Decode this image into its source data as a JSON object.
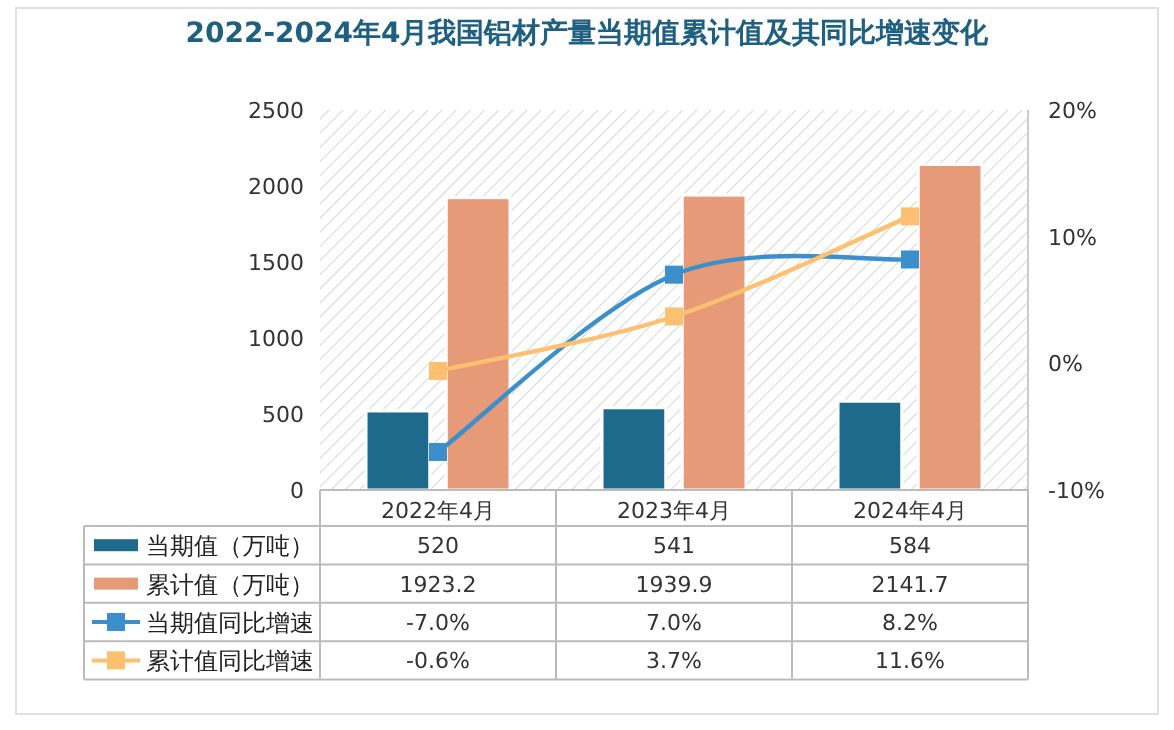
{
  "chart_data": {
    "type": "bar",
    "title": "2022-2024年4月我国铝材产量当期值累计值及其同比增速变化",
    "categories": [
      "2022年4月",
      "2023年4月",
      "2024年4月"
    ],
    "series": [
      {
        "name": "当期值（万吨）",
        "color": "#1e6a8d",
        "values": [
          520,
          541,
          584
        ]
      },
      {
        "name": "累计值（万吨）",
        "color": "#e69a78",
        "values": [
          1923.2,
          1939.9,
          2141.7
        ]
      },
      {
        "name": "当期值同比增速",
        "type": "line",
        "axis": "y2",
        "color": "#3d8fcc",
        "values": [
          -7.0,
          7.0,
          8.2
        ],
        "value_labels": [
          "-7.0%",
          "7.0%",
          "8.2%"
        ]
      },
      {
        "name": "累计值同比增速",
        "type": "line",
        "axis": "y2",
        "color": "#fcc070",
        "values": [
          -0.6,
          3.7,
          11.6
        ],
        "value_labels": [
          "-0.6%",
          "3.7%",
          "11.6%"
        ]
      }
    ],
    "ylim": [
      0,
      2500
    ],
    "yticks": [
      0,
      500,
      1000,
      1500,
      2000,
      2500
    ],
    "y2lim": [
      -10,
      20
    ],
    "y2ticks": [
      {
        "value": -10,
        "label": "-10%"
      },
      {
        "value": 0,
        "label": "0%"
      },
      {
        "value": 10,
        "label": "10%"
      },
      {
        "value": 20,
        "label": "20%"
      }
    ],
    "data_labels": true,
    "marker": "square",
    "legend": "bottom"
  }
}
